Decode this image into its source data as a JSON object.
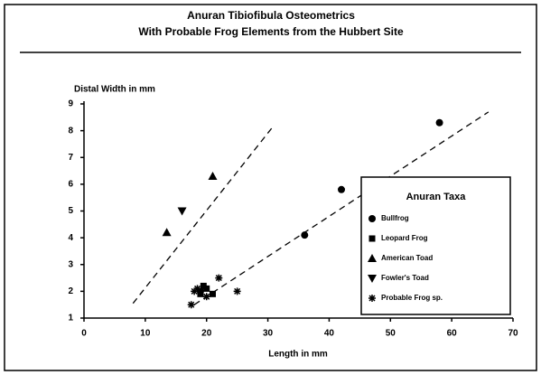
{
  "chart_data": {
    "type": "scatter",
    "title": "Anuran Tibiofibula Osteometrics",
    "subtitle": "With Probable Frog Elements from the Hubbert Site",
    "y_label": "Distal Width in mm",
    "x_label": "Length in mm",
    "legend_title": "Anuran Taxa",
    "legend_position": "lower right",
    "xlim": [
      0,
      70
    ],
    "xticks": [
      0,
      10,
      20,
      30,
      40,
      50,
      60,
      70
    ],
    "ylim": [
      1,
      9
    ],
    "yticks": [
      1,
      2,
      3,
      4,
      5,
      6,
      7,
      8,
      9
    ],
    "series": [
      {
        "name": "Bullfrog",
        "marker": "circle",
        "color": "#000",
        "x": [
          36,
          42,
          58,
          19
        ],
        "values": [
          4.1,
          5.8,
          8.3,
          2.0
        ]
      },
      {
        "name": "Leopard Frog",
        "marker": "square",
        "color": "#000",
        "x": [
          19,
          20,
          21,
          19.5
        ],
        "values": [
          1.9,
          2.1,
          1.9,
          2.2
        ]
      },
      {
        "name": "American Toad",
        "marker": "triangle-up",
        "color": "#000",
        "x": [
          13.5,
          21
        ],
        "values": [
          4.2,
          6.3
        ]
      },
      {
        "name": "Fowler's Toad",
        "marker": "triangle-down",
        "color": "#000",
        "x": [
          16
        ],
        "values": [
          5.0
        ]
      },
      {
        "name": "Probable Frog sp.",
        "marker": "asterisk",
        "color": "#000",
        "x": [
          17.5,
          18,
          18.5,
          20,
          22,
          25
        ],
        "values": [
          1.5,
          2.0,
          2.1,
          1.8,
          2.5,
          2.0
        ]
      }
    ],
    "trend_lines": [
      {
        "x": [
          8,
          31
        ],
        "values": [
          1.55,
          8.2
        ]
      },
      {
        "x": [
          18,
          66
        ],
        "values": [
          1.5,
          8.7
        ]
      }
    ]
  }
}
